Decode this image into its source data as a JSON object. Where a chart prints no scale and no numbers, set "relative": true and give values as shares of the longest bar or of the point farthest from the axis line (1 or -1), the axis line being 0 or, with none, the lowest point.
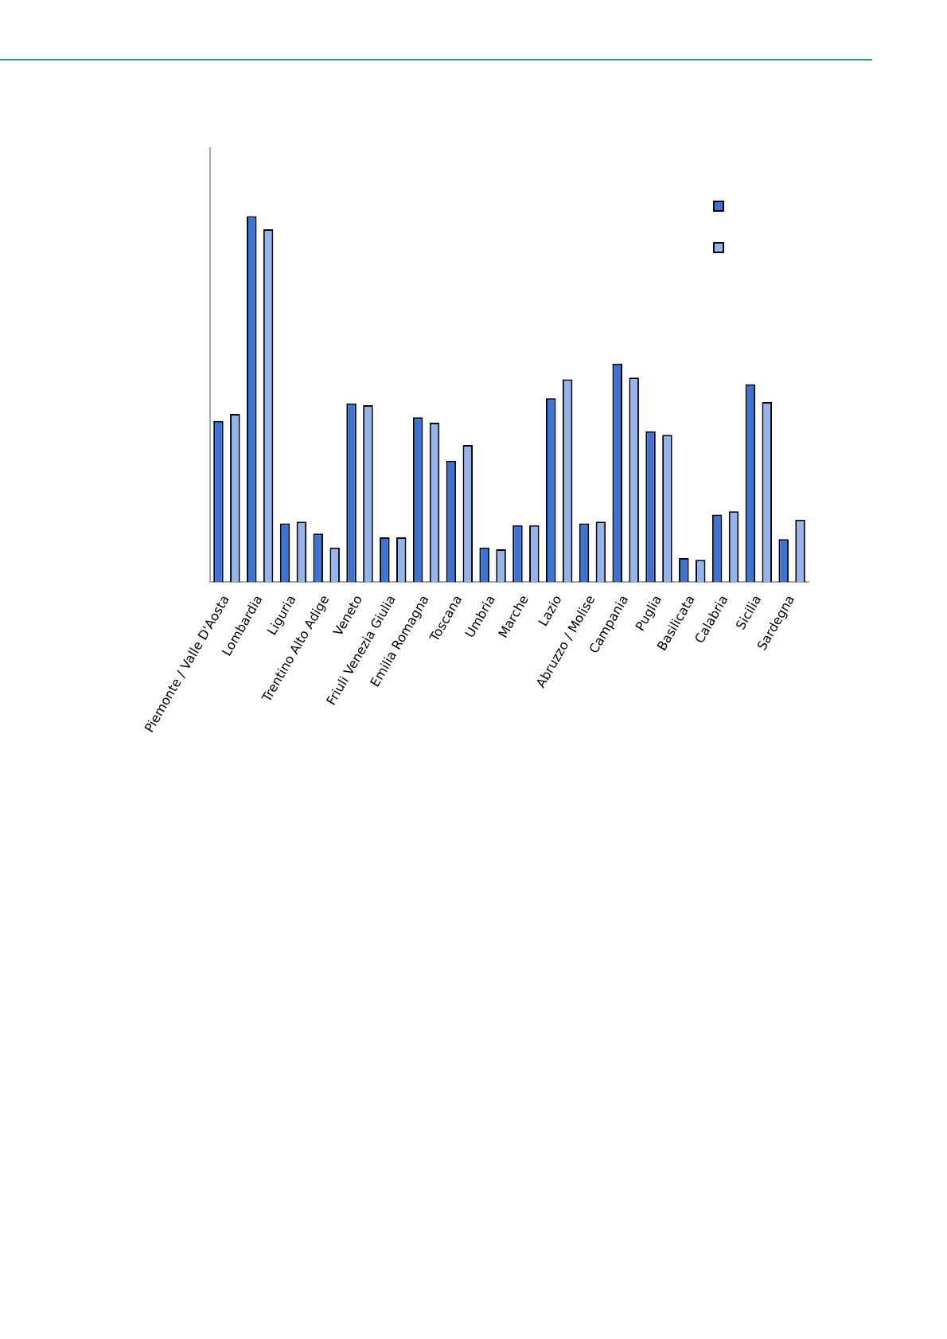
{
  "chart_data": {
    "type": "bar",
    "relative": true,
    "categories": [
      "Piemonte / Valle D'Aosta",
      "Lombardia",
      "Liguria",
      "Trentino Alto Adige",
      "Veneto",
      "Friuli Venezia Giulia",
      "Emilia Romagna",
      "Toscana",
      "Umbria",
      "Marche",
      "Lazio",
      "Abruzzo / Molise",
      "Campania",
      "Puglia",
      "Basilicata",
      "Calabria",
      "Sicilia",
      "Sardegna"
    ],
    "series": [
      {
        "color": "#3a74d8",
        "values": [
          0.44,
          1,
          0.16,
          0.132,
          0.488,
          0.122,
          0.45,
          0.331,
          0.094,
          0.155,
          0.502,
          0.16,
          0.597,
          0.412,
          0.065,
          0.184,
          0.54,
          0.117
        ]
      },
      {
        "color": "#93b5ec",
        "values": [
          0.459,
          0.964,
          0.165,
          0.094,
          0.483,
          0.122,
          0.435,
          0.374,
          0.089,
          0.155,
          0.554,
          0.165,
          0.559,
          0.402,
          0.06,
          0.193,
          0.492,
          0.17
        ]
      }
    ]
  }
}
